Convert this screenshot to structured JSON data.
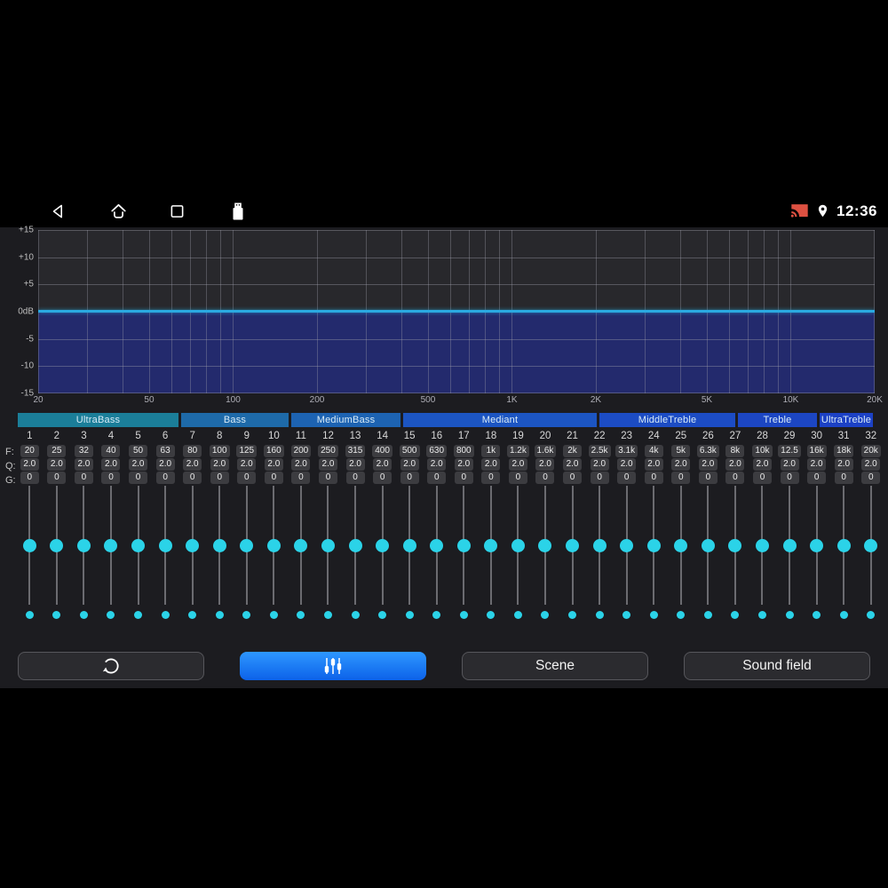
{
  "status_bar": {
    "time": "12:36",
    "icons": [
      "cast-icon",
      "location-icon"
    ],
    "cast_color": "#dd5041"
  },
  "nav_bar": {
    "icons": [
      "back-icon",
      "home-icon",
      "recents-icon",
      "usb-icon"
    ]
  },
  "chart_data": {
    "type": "area",
    "title": "equalizer-frequency-response",
    "x_axis": {
      "scale": "log",
      "unit": "Hz",
      "min": 20,
      "max": 20000,
      "ticks": [
        {
          "hz": 20,
          "label": "20"
        },
        {
          "hz": 50,
          "label": "50"
        },
        {
          "hz": 100,
          "label": "100"
        },
        {
          "hz": 200,
          "label": "200"
        },
        {
          "hz": 500,
          "label": "500"
        },
        {
          "hz": 1000,
          "label": "1K"
        },
        {
          "hz": 2000,
          "label": "2K"
        },
        {
          "hz": 5000,
          "label": "5K"
        },
        {
          "hz": 10000,
          "label": "10K"
        },
        {
          "hz": 20000,
          "label": "20K"
        }
      ]
    },
    "y_axis": {
      "unit": "dB",
      "min": -15,
      "max": 15,
      "tick_labels": [
        "+15",
        "+10",
        "+5",
        "0dB",
        "-5",
        "-10",
        "-15"
      ]
    },
    "curve": {
      "shape": "flat",
      "level_db": 0
    },
    "grid": true,
    "colors": {
      "line": "#2aa9e0",
      "fill": "#232a6d",
      "plot_bg": "#28282c"
    }
  },
  "band_groups": [
    {
      "label": "UltraBass",
      "bands": "1-6",
      "color": "#1b7e99"
    },
    {
      "label": "Bass",
      "bands": "7-10",
      "color": "#1e6aa9"
    },
    {
      "label": "MediumBass",
      "bands": "11-14",
      "color": "#1d63b2"
    },
    {
      "label": "Mediant",
      "bands": "15-21",
      "color": "#1c55c2"
    },
    {
      "label": "MiddleTreble",
      "bands": "22-26",
      "color": "#1c4cc4"
    },
    {
      "label": "Treble",
      "bands": "27-29",
      "color": "#1c46c3"
    },
    {
      "label": "UltraTreble",
      "bands": "30-32",
      "color": "#1c41c5"
    }
  ],
  "eq_table": {
    "row_labels": {
      "f": "F:",
      "q": "Q:",
      "g": "G:"
    },
    "bands": [
      {
        "n": "1",
        "f": "20",
        "q": "2.0",
        "g": "0"
      },
      {
        "n": "2",
        "f": "25",
        "q": "2.0",
        "g": "0"
      },
      {
        "n": "3",
        "f": "32",
        "q": "2.0",
        "g": "0"
      },
      {
        "n": "4",
        "f": "40",
        "q": "2.0",
        "g": "0"
      },
      {
        "n": "5",
        "f": "50",
        "q": "2.0",
        "g": "0"
      },
      {
        "n": "6",
        "f": "63",
        "q": "2.0",
        "g": "0"
      },
      {
        "n": "7",
        "f": "80",
        "q": "2.0",
        "g": "0"
      },
      {
        "n": "8",
        "f": "100",
        "q": "2.0",
        "g": "0"
      },
      {
        "n": "9",
        "f": "125",
        "q": "2.0",
        "g": "0"
      },
      {
        "n": "10",
        "f": "160",
        "q": "2.0",
        "g": "0"
      },
      {
        "n": "11",
        "f": "200",
        "q": "2.0",
        "g": "0"
      },
      {
        "n": "12",
        "f": "250",
        "q": "2.0",
        "g": "0"
      },
      {
        "n": "13",
        "f": "315",
        "q": "2.0",
        "g": "0"
      },
      {
        "n": "14",
        "f": "400",
        "q": "2.0",
        "g": "0"
      },
      {
        "n": "15",
        "f": "500",
        "q": "2.0",
        "g": "0"
      },
      {
        "n": "16",
        "f": "630",
        "q": "2.0",
        "g": "0"
      },
      {
        "n": "17",
        "f": "800",
        "q": "2.0",
        "g": "0"
      },
      {
        "n": "18",
        "f": "1k",
        "q": "2.0",
        "g": "0"
      },
      {
        "n": "19",
        "f": "1.2k",
        "q": "2.0",
        "g": "0"
      },
      {
        "n": "20",
        "f": "1.6k",
        "q": "2.0",
        "g": "0"
      },
      {
        "n": "21",
        "f": "2k",
        "q": "2.0",
        "g": "0"
      },
      {
        "n": "22",
        "f": "2.5k",
        "q": "2.0",
        "g": "0"
      },
      {
        "n": "23",
        "f": "3.1k",
        "q": "2.0",
        "g": "0"
      },
      {
        "n": "24",
        "f": "4k",
        "q": "2.0",
        "g": "0"
      },
      {
        "n": "25",
        "f": "5k",
        "q": "2.0",
        "g": "0"
      },
      {
        "n": "26",
        "f": "6.3k",
        "q": "2.0",
        "g": "0"
      },
      {
        "n": "27",
        "f": "8k",
        "q": "2.0",
        "g": "0"
      },
      {
        "n": "28",
        "f": "10k",
        "q": "2.0",
        "g": "0"
      },
      {
        "n": "29",
        "f": "12.5",
        "q": "2.0",
        "g": "0"
      },
      {
        "n": "30",
        "f": "16k",
        "q": "2.0",
        "g": "0"
      },
      {
        "n": "31",
        "f": "18k",
        "q": "2.0",
        "g": "0"
      },
      {
        "n": "32",
        "f": "20k",
        "q": "2.0",
        "g": "0"
      }
    ]
  },
  "sliders": {
    "count": 32,
    "value_db": 0,
    "knob_color": "#2bd3e8"
  },
  "action_bar": {
    "reset": {
      "icon": "reset-arrow-icon"
    },
    "eq": {
      "icon": "equalizer-sliders-icon",
      "active": true
    },
    "scene": {
      "label": "Scene"
    },
    "sound_field": {
      "label": "Sound field"
    }
  }
}
